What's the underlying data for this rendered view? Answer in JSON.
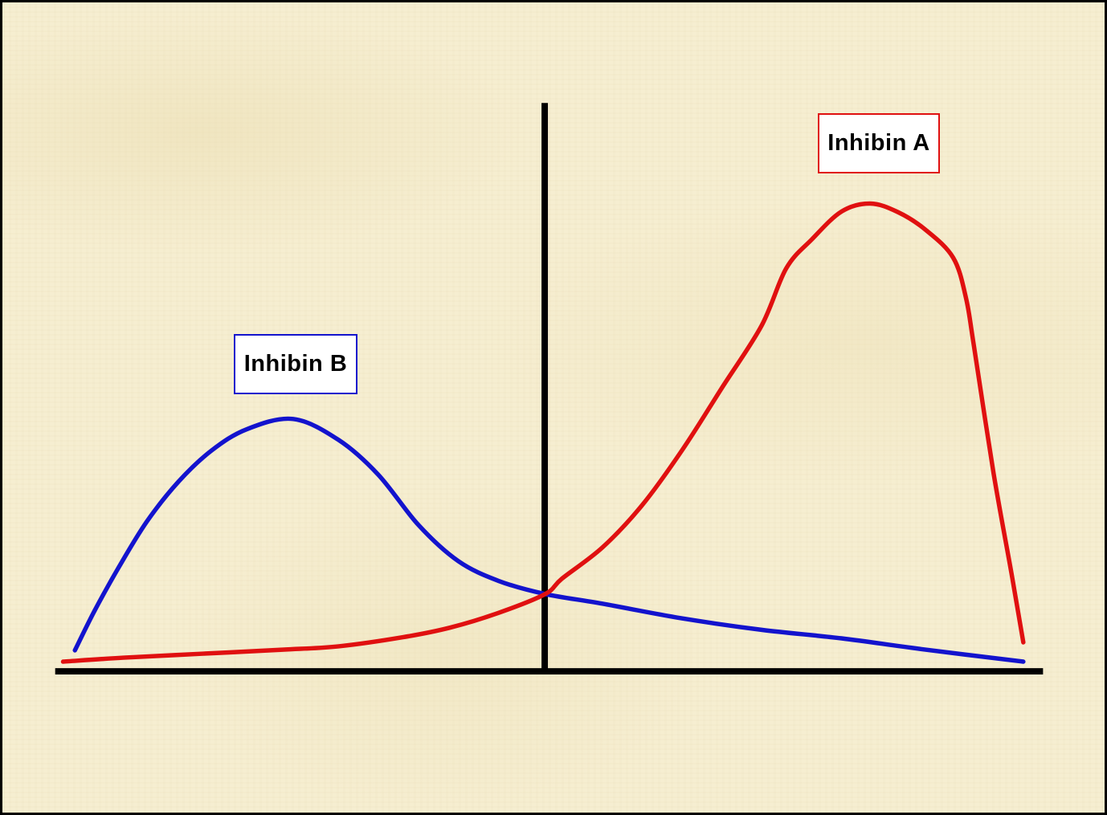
{
  "figure": {
    "background_color": "#f6eed1",
    "border_color": "#000000",
    "axis_color": "#000000"
  },
  "labels": {
    "inhibin_b_box": "Inhibin B",
    "inhibin_a_box": "Inhibin A"
  },
  "chart_data": {
    "type": "line",
    "title": "",
    "xlabel": "",
    "ylabel": "",
    "x_range": [
      0,
      100
    ],
    "y_range": [
      0,
      100
    ],
    "grid": false,
    "tick_labels": "none",
    "legend_position": "boxed labels near each curve peak",
    "series": [
      {
        "name": "Inhibin B",
        "color": "#1313cd",
        "label_box": {
          "text": "Inhibin B",
          "border_color": "#1313cd",
          "fill": "#ffffff"
        },
        "points": [
          [
            2.0,
            3.7
          ],
          [
            4.0,
            10.7
          ],
          [
            6.5,
            18.5
          ],
          [
            9.3,
            26.4
          ],
          [
            12.5,
            33.4
          ],
          [
            15.8,
            38.8
          ],
          [
            19.4,
            42.6
          ],
          [
            24.1,
            44.4
          ],
          [
            28.7,
            40.7
          ],
          [
            32.7,
            34.6
          ],
          [
            36.8,
            25.7
          ],
          [
            40.8,
            19.4
          ],
          [
            44.9,
            15.9
          ],
          [
            49.6,
            13.6
          ],
          [
            55.4,
            11.9
          ],
          [
            63.5,
            9.3
          ],
          [
            71.5,
            7.3
          ],
          [
            79.6,
            5.8
          ],
          [
            87.7,
            3.9
          ],
          [
            98.0,
            1.7
          ]
        ]
      },
      {
        "name": "Inhibin A",
        "color": "#e01010",
        "label_box": {
          "text": "Inhibin A",
          "border_color": "#e01010",
          "fill": "#ffffff"
        },
        "points": [
          [
            0.8,
            1.7
          ],
          [
            6.9,
            2.4
          ],
          [
            15.0,
            3.1
          ],
          [
            23.0,
            3.8
          ],
          [
            28.7,
            4.4
          ],
          [
            35.2,
            6.0
          ],
          [
            40.0,
            7.7
          ],
          [
            44.9,
            10.3
          ],
          [
            49.6,
            13.6
          ],
          [
            51.3,
            16.3
          ],
          [
            55.4,
            21.8
          ],
          [
            59.4,
            29.2
          ],
          [
            63.5,
            39.0
          ],
          [
            67.5,
            49.9
          ],
          [
            71.5,
            60.8
          ],
          [
            74.0,
            70.9
          ],
          [
            76.6,
            76.0
          ],
          [
            79.6,
            80.9
          ],
          [
            82.5,
            82.3
          ],
          [
            85.3,
            80.8
          ],
          [
            88.1,
            77.7
          ],
          [
            90.9,
            72.8
          ],
          [
            92.2,
            65.7
          ],
          [
            93.0,
            57.3
          ],
          [
            95.0,
            34.8
          ],
          [
            96.8,
            17.3
          ],
          [
            98.0,
            5.1
          ]
        ]
      }
    ],
    "annotations": {
      "crossing_point_norm_x": 49.6,
      "crossing_on_vertical_axis": true
    }
  }
}
